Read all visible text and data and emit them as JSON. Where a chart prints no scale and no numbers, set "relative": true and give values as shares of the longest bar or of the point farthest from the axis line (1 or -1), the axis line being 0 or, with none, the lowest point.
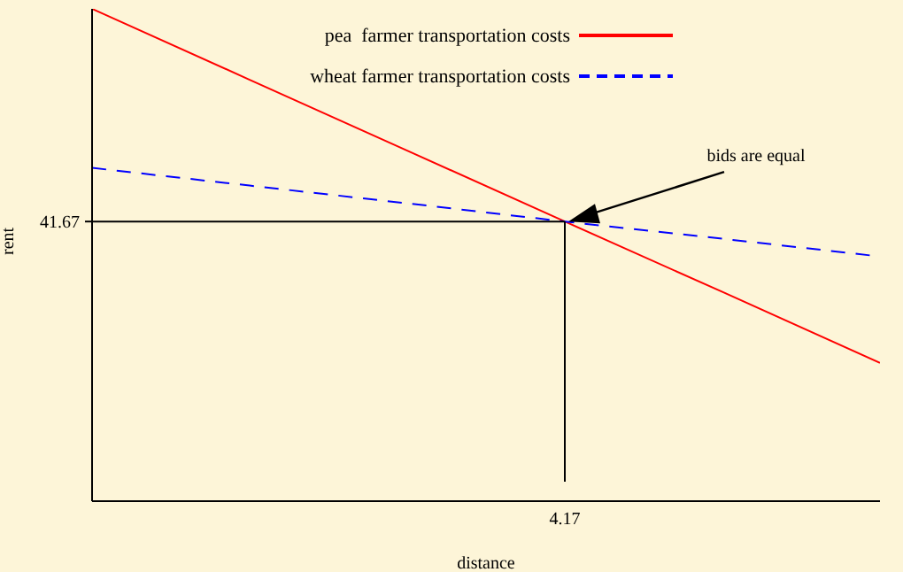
{
  "chart_data": {
    "type": "line",
    "xlabel": "distance",
    "ylabel": "rent",
    "relative": true,
    "categories": [
      null,
      null,
      null,
      null,
      null,
      null
    ],
    "series": [
      {
        "name": "pea  farmer transportation costs",
        "color": "#ff0000",
        "values": [
          1,
          0.856,
          0.712,
          0.568,
          0.425,
          0.281
        ],
        "line_style": "solid"
      },
      {
        "name": "wheat farmer transportation costs",
        "color": "#0000ff",
        "values": [
          0.677,
          0.641,
          0.605,
          0.568,
          0.533,
          0.497
        ],
        "line_style": "dashed"
      },
      {
        "color": "#000000",
        "values": [
          0.568,
          0.568,
          0.568,
          0.568,
          null,
          null
        ],
        "line_style": "solid"
      }
    ],
    "annotations": [
      "bids are equal",
      "41.67",
      "4.17"
    ],
    "legend": "top",
    "grid": false,
    "marker": "none"
  }
}
